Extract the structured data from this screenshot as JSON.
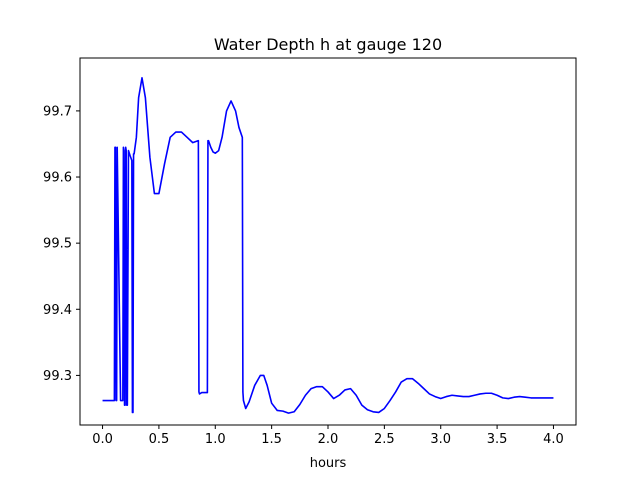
{
  "chart_data": {
    "type": "line",
    "title": "Water Depth h at gauge 120",
    "xlabel": "hours",
    "ylabel": "",
    "xlim": [
      -0.2,
      4.2
    ],
    "ylim": [
      99.225,
      99.78
    ],
    "xticks": [
      0.0,
      0.5,
      1.0,
      1.5,
      2.0,
      2.5,
      3.0,
      3.5,
      4.0
    ],
    "xtick_labels": [
      "0.0",
      "0.5",
      "1.0",
      "1.5",
      "2.0",
      "2.5",
      "3.0",
      "3.5",
      "4.0"
    ],
    "yticks": [
      99.3,
      99.4,
      99.5,
      99.6,
      99.7
    ],
    "ytick_labels": [
      "99.3",
      "99.4",
      "99.5",
      "99.6",
      "99.7"
    ],
    "grid": false,
    "colors": {
      "line": "#0000ff",
      "axes": "#000000",
      "background": "#ffffff"
    },
    "series": [
      {
        "x": [
          0.0,
          0.05,
          0.1,
          0.105,
          0.11,
          0.115,
          0.12,
          0.125,
          0.13,
          0.16,
          0.18,
          0.185,
          0.19,
          0.195,
          0.2,
          0.205,
          0.21,
          0.215,
          0.22,
          0.23,
          0.245,
          0.26,
          0.265,
          0.27,
          0.275,
          0.28,
          0.3,
          0.32,
          0.35,
          0.38,
          0.42,
          0.46,
          0.5,
          0.55,
          0.6,
          0.65,
          0.7,
          0.75,
          0.8,
          0.85,
          0.855,
          0.86,
          0.88,
          0.9,
          0.93,
          0.935,
          0.94,
          0.96,
          0.98,
          1.0,
          1.03,
          1.06,
          1.1,
          1.14,
          1.18,
          1.21,
          1.24,
          1.245,
          1.25,
          1.27,
          1.3,
          1.35,
          1.4,
          1.43,
          1.46,
          1.5,
          1.55,
          1.6,
          1.65,
          1.7,
          1.75,
          1.8,
          1.85,
          1.9,
          1.95,
          2.0,
          2.05,
          2.1,
          2.15,
          2.2,
          2.25,
          2.3,
          2.35,
          2.4,
          2.45,
          2.5,
          2.55,
          2.6,
          2.65,
          2.7,
          2.75,
          2.8,
          2.85,
          2.9,
          2.95,
          3.0,
          3.05,
          3.1,
          3.15,
          3.2,
          3.25,
          3.3,
          3.35,
          3.4,
          3.45,
          3.5,
          3.55,
          3.6,
          3.65,
          3.7,
          3.75,
          3.8,
          3.85,
          3.9,
          3.95,
          4.0
        ],
        "y": [
          99.262,
          99.262,
          99.262,
          99.262,
          99.645,
          99.645,
          99.262,
          99.262,
          99.645,
          99.262,
          99.262,
          99.645,
          99.64,
          99.255,
          99.255,
          99.645,
          99.64,
          99.255,
          99.255,
          99.64,
          99.632,
          99.625,
          99.244,
          99.244,
          99.635,
          99.635,
          99.66,
          99.72,
          99.75,
          99.72,
          99.63,
          99.575,
          99.575,
          99.62,
          99.66,
          99.668,
          99.668,
          99.66,
          99.652,
          99.655,
          99.275,
          99.272,
          99.274,
          99.274,
          99.274,
          99.655,
          99.655,
          99.645,
          99.638,
          99.636,
          99.64,
          99.66,
          99.7,
          99.715,
          99.7,
          99.675,
          99.66,
          99.275,
          99.262,
          99.25,
          99.26,
          99.285,
          99.3,
          99.3,
          99.285,
          99.258,
          99.247,
          99.246,
          99.243,
          99.245,
          99.256,
          99.27,
          99.28,
          99.283,
          99.283,
          99.275,
          99.265,
          99.27,
          99.278,
          99.28,
          99.27,
          99.255,
          99.248,
          99.245,
          99.244,
          99.25,
          99.262,
          99.275,
          99.29,
          99.295,
          99.295,
          99.288,
          99.28,
          99.272,
          99.268,
          99.265,
          99.268,
          99.27,
          99.269,
          99.268,
          99.268,
          99.27,
          99.272,
          99.273,
          99.273,
          99.27,
          99.266,
          99.265,
          99.267,
          99.268,
          99.267,
          99.266,
          99.266,
          99.266,
          99.266,
          99.266
        ]
      }
    ]
  }
}
